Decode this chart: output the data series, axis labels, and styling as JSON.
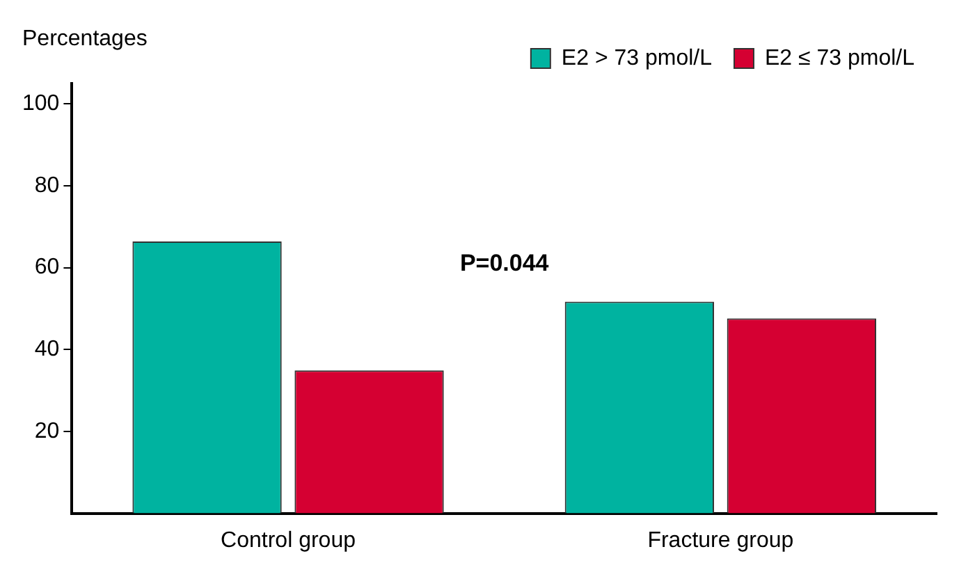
{
  "chart_data": {
    "type": "bar",
    "ylabel": "Percentages",
    "categories": [
      "Control group",
      "Fracture group"
    ],
    "series": [
      {
        "name": "E2 > 73 pmol/L",
        "color": "#00b3a0",
        "values": [
          66.4,
          51.7
        ]
      },
      {
        "name": "E2 ≤ 73 pmol/L",
        "color": "#d50032",
        "values": [
          34.9,
          47.6
        ]
      }
    ],
    "ylim": [
      0,
      105
    ],
    "yticks": [
      20,
      40,
      60,
      80,
      100
    ],
    "grid": false,
    "legend": "top right",
    "annotations": [
      "P=0.044"
    ]
  }
}
